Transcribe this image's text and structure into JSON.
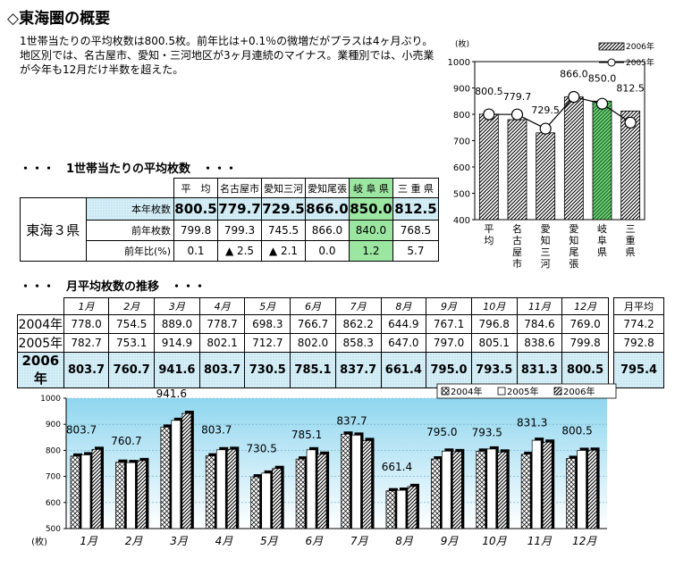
{
  "page": {
    "title": "◇東海圏の概要",
    "intro": "1世帯当たりの平均枚数は800.5枚。前年比は+0.1％の微増だがプラスは4ヶ月ぶり。地区別では、名古屋市、愛知・三河地区が3ヶ月連続のマイナス。業種別では、小売業が今年も12月だけ半数を超えた。",
    "section1_title": "・・・　1世帯当たりの平均枚数　・・・",
    "section2_title": "・・・　月平均枚数の推移　・・・"
  },
  "table1": {
    "region": "東海３県",
    "columns": [
      "平　均",
      "名古屋市",
      "愛知三河",
      "愛知尾張",
      "岐 阜 県",
      "三 重 県"
    ],
    "rows": [
      {
        "label": "本年枚数",
        "values": [
          "800.5",
          "779.7",
          "729.5",
          "866.0",
          "850.0",
          "812.5"
        ]
      },
      {
        "label": "前年枚数",
        "values": [
          "799.8",
          "799.3",
          "745.5",
          "866.0",
          "840.0",
          "768.5"
        ]
      },
      {
        "label": "前年比(%)",
        "values": [
          "0.1",
          "▲ 2.5",
          "▲ 2.1",
          "0.0",
          "1.2",
          "5.7"
        ]
      }
    ]
  },
  "table2": {
    "columns": [
      "1月",
      "2月",
      "3月",
      "4月",
      "5月",
      "6月",
      "7月",
      "8月",
      "9月",
      "10月",
      "11月",
      "12月"
    ],
    "avg_header": "月平均",
    "rows": [
      {
        "year": "2004年",
        "values": [
          "778.0",
          "754.5",
          "889.0",
          "778.7",
          "698.3",
          "766.7",
          "862.2",
          "644.9",
          "767.1",
          "796.8",
          "784.6",
          "769.0"
        ],
        "avg": "774.2"
      },
      {
        "year": "2005年",
        "values": [
          "782.7",
          "753.1",
          "914.9",
          "802.1",
          "712.7",
          "802.0",
          "858.3",
          "647.0",
          "797.0",
          "805.1",
          "838.6",
          "799.8"
        ],
        "avg": "792.8"
      },
      {
        "year": "2006年",
        "values": [
          "803.7",
          "760.7",
          "941.6",
          "803.7",
          "730.5",
          "785.1",
          "837.7",
          "661.4",
          "795.0",
          "793.5",
          "831.3",
          "800.5"
        ],
        "avg": "795.4"
      }
    ]
  },
  "chart_data": [
    {
      "type": "bar",
      "ylabel": "(枚)",
      "ylim": [
        400,
        1000
      ],
      "yticks": [
        400,
        500,
        600,
        700,
        800,
        900,
        1000
      ],
      "categories": [
        "平均",
        "名古屋市",
        "愛知三河",
        "愛知尾張",
        "岐阜県",
        "三重県"
      ],
      "series": [
        {
          "name": "2006年",
          "kind": "bar",
          "values": [
            800.5,
            779.7,
            729.5,
            866.0,
            850.0,
            812.5
          ]
        },
        {
          "name": "2005年",
          "kind": "line",
          "values": [
            799.8,
            799.3,
            745.5,
            866.0,
            840.0,
            768.5
          ]
        }
      ],
      "data_labels": [
        "800.5",
        "779.7",
        "729.5",
        "866.0",
        "850.0",
        "812.5"
      ],
      "highlight_category": "岐阜県",
      "legend": "top-right"
    },
    {
      "type": "bar",
      "ylabel": "(枚)",
      "ylim": [
        500,
        1000
      ],
      "yticks": [
        500,
        600,
        700,
        800,
        900,
        1000
      ],
      "categories": [
        "1月",
        "2月",
        "3月",
        "4月",
        "5月",
        "6月",
        "7月",
        "8月",
        "9月",
        "10月",
        "11月",
        "12月"
      ],
      "series": [
        {
          "name": "2004年",
          "values": [
            778.0,
            754.5,
            889.0,
            778.7,
            698.3,
            766.7,
            862.2,
            644.9,
            767.1,
            796.8,
            784.6,
            769.0
          ]
        },
        {
          "name": "2005年",
          "values": [
            782.7,
            753.1,
            914.9,
            802.1,
            712.7,
            802.0,
            858.3,
            647.0,
            797.0,
            805.1,
            838.6,
            799.8
          ]
        },
        {
          "name": "2006年",
          "values": [
            803.7,
            760.7,
            941.6,
            803.7,
            730.5,
            785.1,
            837.7,
            661.4,
            795.0,
            793.5,
            831.3,
            800.5
          ]
        }
      ],
      "data_labels": [
        "803.7",
        "760.7",
        "941.6",
        "803.7",
        "730.5",
        "785.1",
        "837.7",
        "661.4",
        "795.0",
        "793.5",
        "831.3",
        "800.5"
      ],
      "legend": "top-right"
    }
  ]
}
